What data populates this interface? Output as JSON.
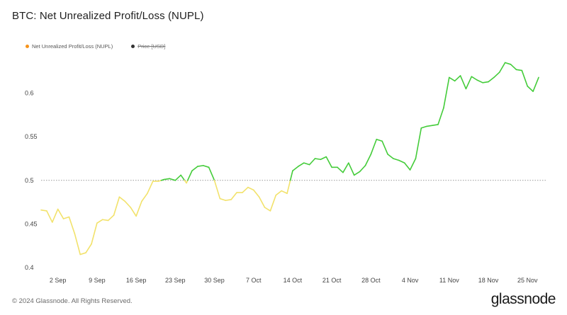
{
  "header": {
    "title": "BTC: Net Unrealized Profit/Loss (NUPL)"
  },
  "legend": {
    "items": [
      {
        "label": "Net Unrealized Profit/Loss (NUPL)",
        "color": "#f7931a",
        "active": true
      },
      {
        "label": "Price [USD]",
        "color": "#333333",
        "active": false
      }
    ]
  },
  "footer": {
    "copyright": "© 2024 Glassnode. All Rights Reserved.",
    "brand": "glassnode"
  },
  "chart_data": {
    "type": "line",
    "title": "BTC: Net Unrealized Profit/Loss (NUPL)",
    "xlabel": "",
    "ylabel": "",
    "ylim": [
      0.4,
      0.65
    ],
    "yticks": [
      0.4,
      0.45,
      0.5,
      0.55,
      0.6
    ],
    "yticklabels": [
      "0.4",
      "0.45",
      "0.5",
      "0.55",
      "0.6"
    ],
    "xticklabels": [
      "2 Sep",
      "9 Sep",
      "16 Sep",
      "23 Sep",
      "30 Sep",
      "7 Oct",
      "14 Oct",
      "21 Oct",
      "28 Oct",
      "4 Nov",
      "11 Nov",
      "18 Nov",
      "25 Nov"
    ],
    "reference_line": 0.5,
    "grid": false,
    "legend_position": "top-left",
    "colors": {
      "below_threshold": "#f2e26b",
      "above_threshold": "#44cc3a",
      "reference": "#999999"
    },
    "series": [
      {
        "name": "Net Unrealized Profit/Loss (NUPL)",
        "x": [
          "2024-08-30",
          "2024-08-31",
          "2024-09-01",
          "2024-09-02",
          "2024-09-03",
          "2024-09-04",
          "2024-09-05",
          "2024-09-06",
          "2024-09-07",
          "2024-09-08",
          "2024-09-09",
          "2024-09-10",
          "2024-09-11",
          "2024-09-12",
          "2024-09-13",
          "2024-09-14",
          "2024-09-15",
          "2024-09-16",
          "2024-09-17",
          "2024-09-18",
          "2024-09-19",
          "2024-09-20",
          "2024-09-21",
          "2024-09-22",
          "2024-09-23",
          "2024-09-24",
          "2024-09-25",
          "2024-09-26",
          "2024-09-27",
          "2024-09-28",
          "2024-09-29",
          "2024-09-30",
          "2024-10-01",
          "2024-10-02",
          "2024-10-03",
          "2024-10-04",
          "2024-10-05",
          "2024-10-06",
          "2024-10-07",
          "2024-10-08",
          "2024-10-09",
          "2024-10-10",
          "2024-10-11",
          "2024-10-12",
          "2024-10-13",
          "2024-10-14",
          "2024-10-15",
          "2024-10-16",
          "2024-10-17",
          "2024-10-18",
          "2024-10-19",
          "2024-10-20",
          "2024-10-21",
          "2024-10-22",
          "2024-10-23",
          "2024-10-24",
          "2024-10-25",
          "2024-10-26",
          "2024-10-27",
          "2024-10-28",
          "2024-10-29",
          "2024-10-30",
          "2024-10-31",
          "2024-11-01",
          "2024-11-02",
          "2024-11-03",
          "2024-11-04",
          "2024-11-05",
          "2024-11-06",
          "2024-11-07",
          "2024-11-08",
          "2024-11-09",
          "2024-11-10",
          "2024-11-11",
          "2024-11-12",
          "2024-11-13",
          "2024-11-14",
          "2024-11-15",
          "2024-11-16",
          "2024-11-17",
          "2024-11-18",
          "2024-11-19",
          "2024-11-20",
          "2024-11-21",
          "2024-11-22",
          "2024-11-23",
          "2024-11-24",
          "2024-11-25",
          "2024-11-26",
          "2024-11-27"
        ],
        "values": [
          0.466,
          0.465,
          0.452,
          0.467,
          0.456,
          0.458,
          0.439,
          0.415,
          0.417,
          0.427,
          0.451,
          0.455,
          0.454,
          0.46,
          0.481,
          0.476,
          0.469,
          0.459,
          0.476,
          0.485,
          0.499,
          0.499,
          0.501,
          0.502,
          0.5,
          0.506,
          0.497,
          0.511,
          0.516,
          0.517,
          0.515,
          0.5,
          0.479,
          0.477,
          0.478,
          0.486,
          0.486,
          0.492,
          0.489,
          0.481,
          0.469,
          0.465,
          0.483,
          0.488,
          0.485,
          0.511,
          0.516,
          0.52,
          0.518,
          0.525,
          0.524,
          0.527,
          0.515,
          0.515,
          0.509,
          0.52,
          0.506,
          0.51,
          0.517,
          0.53,
          0.547,
          0.545,
          0.53,
          0.525,
          0.523,
          0.52,
          0.512,
          0.525,
          0.56,
          0.562,
          0.563,
          0.564,
          0.583,
          0.618,
          0.614,
          0.62,
          0.605,
          0.619,
          0.615,
          0.612,
          0.613,
          0.618,
          0.624,
          0.635,
          0.633,
          0.627,
          0.626,
          0.608,
          0.602,
          0.618
        ]
      }
    ]
  }
}
